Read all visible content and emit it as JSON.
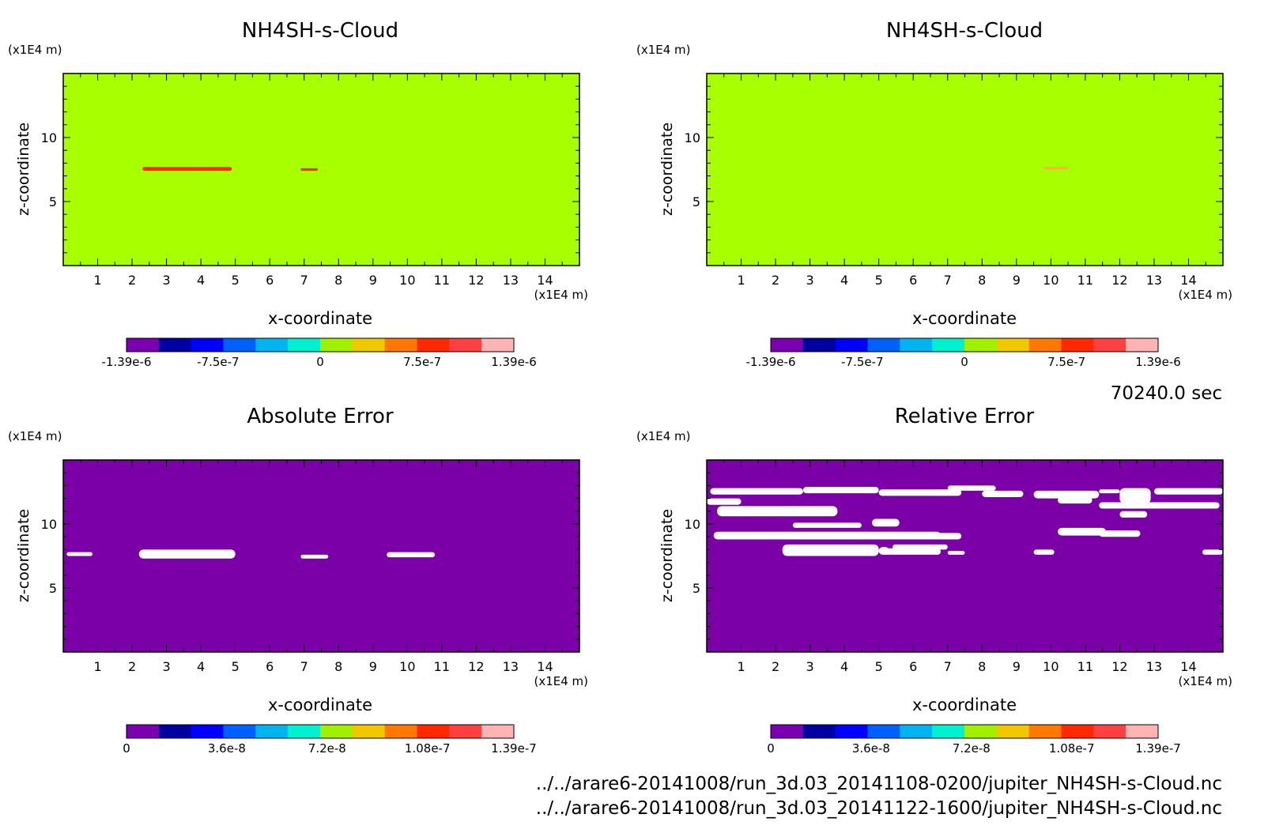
{
  "colorbar_colors": [
    "#7a00b0",
    "#0000a0",
    "#0000ff",
    "#0060ff",
    "#00b4f0",
    "#00f0d2",
    "#a0f000",
    "#f0c800",
    "#ff7800",
    "#ff2800",
    "#ff4040",
    "#ffb4b4"
  ],
  "background_color": "#a8ff00",
  "error_background_color": "#7b00a8",
  "timestamp": "70240.0 sec",
  "files": [
    "../../arare6-20141008/run_3d.03_20141108-0200/jupiter_NH4SH-s-Cloud.nc",
    "../../arare6-20141008/run_3d.03_20141122-1600/jupiter_NH4SH-s-Cloud.nc"
  ],
  "chart_data": [
    {
      "type": "heatmap",
      "title": "NH4SH-s-Cloud",
      "xlabel": "x-coordinate",
      "ylabel": "z-coordinate",
      "x_unit": "(x1E4 m)",
      "y_unit": "(x1E4 m)",
      "xlim": [
        0,
        15
      ],
      "ylim": [
        0,
        15
      ],
      "xticks": [
        1,
        2,
        3,
        4,
        5,
        6,
        7,
        8,
        9,
        10,
        11,
        12,
        13,
        14
      ],
      "yticks": [
        5,
        10
      ],
      "colorbar_ticks": [
        "-1.39e-6",
        "-7.5e-7",
        "0",
        "7.5e-7",
        "1.39e-6"
      ],
      "colorbar_range": [
        -1.39e-06,
        1.39e-06
      ],
      "background_value": 0,
      "features": [
        {
          "x": [
            2.3,
            4.9
          ],
          "z": [
            7.4,
            7.7
          ],
          "color": "#ff2800"
        },
        {
          "x": [
            6.9,
            7.4
          ],
          "z": [
            7.4,
            7.6
          ],
          "color": "#ff2800"
        }
      ]
    },
    {
      "type": "heatmap",
      "title": "NH4SH-s-Cloud",
      "xlabel": "x-coordinate",
      "ylabel": "z-coordinate",
      "x_unit": "(x1E4 m)",
      "y_unit": "(x1E4 m)",
      "xlim": [
        0,
        15
      ],
      "ylim": [
        0,
        15
      ],
      "xticks": [
        1,
        2,
        3,
        4,
        5,
        6,
        7,
        8,
        9,
        10,
        11,
        12,
        13,
        14
      ],
      "yticks": [
        5,
        10
      ],
      "colorbar_ticks": [
        "-1.39e-6",
        "-7.5e-7",
        "0",
        "7.5e-7",
        "1.39e-6"
      ],
      "colorbar_range": [
        -1.39e-06,
        1.39e-06
      ],
      "background_value": 0,
      "features": [
        {
          "x": [
            9.8,
            10.5
          ],
          "z": [
            7.5,
            7.7
          ],
          "color": "#ffb040"
        }
      ]
    },
    {
      "type": "heatmap",
      "title": "Absolute Error",
      "xlabel": "x-coordinate",
      "ylabel": "z-coordinate",
      "x_unit": "(x1E4 m)",
      "y_unit": "(x1E4 m)",
      "xlim": [
        0,
        15
      ],
      "ylim": [
        0,
        15
      ],
      "xticks": [
        1,
        2,
        3,
        4,
        5,
        6,
        7,
        8,
        9,
        10,
        11,
        12,
        13,
        14
      ],
      "yticks": [
        5,
        10
      ],
      "colorbar_ticks": [
        "0",
        "3.6e-8",
        "7.2e-8",
        "1.08e-7",
        "1.39e-7"
      ],
      "colorbar_range": [
        0,
        1.39e-07
      ],
      "background_value": 0,
      "features": [
        {
          "x": [
            0.1,
            0.85
          ],
          "z": [
            7.5,
            7.8
          ],
          "color": "#ffffff"
        },
        {
          "x": [
            2.2,
            5.0
          ],
          "z": [
            7.3,
            8.0
          ],
          "color": "#ffffff"
        },
        {
          "x": [
            6.9,
            7.7
          ],
          "z": [
            7.3,
            7.6
          ],
          "color": "#ffffff"
        },
        {
          "x": [
            9.4,
            10.8
          ],
          "z": [
            7.4,
            7.8
          ],
          "color": "#ffffff"
        }
      ]
    },
    {
      "type": "heatmap",
      "title": "Relative Error",
      "xlabel": "x-coordinate",
      "ylabel": "z-coordinate",
      "x_unit": "(x1E4 m)",
      "y_unit": "(x1E4 m)",
      "xlim": [
        0,
        15
      ],
      "ylim": [
        0,
        15
      ],
      "xticks": [
        1,
        2,
        3,
        4,
        5,
        6,
        7,
        8,
        9,
        10,
        11,
        12,
        13,
        14
      ],
      "yticks": [
        5,
        10
      ],
      "colorbar_ticks": [
        "0",
        "3.6e-8",
        "7.2e-8",
        "1.08e-7",
        "1.39e-7"
      ],
      "colorbar_range": [
        0,
        1.39e-07
      ],
      "background_value": 0,
      "features": [
        {
          "x": [
            0.1,
            2.8
          ],
          "z": [
            12.3,
            12.8
          ],
          "color": "#ffffff"
        },
        {
          "x": [
            2.8,
            5.0
          ],
          "z": [
            12.4,
            12.9
          ],
          "color": "#ffffff"
        },
        {
          "x": [
            5.0,
            7.4
          ],
          "z": [
            12.2,
            12.7
          ],
          "color": "#ffffff"
        },
        {
          "x": [
            0.0,
            1.0
          ],
          "z": [
            11.5,
            12.0
          ],
          "color": "#ffffff"
        },
        {
          "x": [
            0.3,
            3.8
          ],
          "z": [
            10.6,
            11.4
          ],
          "color": "#ffffff"
        },
        {
          "x": [
            2.5,
            4.5
          ],
          "z": [
            9.7,
            10.1
          ],
          "color": "#ffffff"
        },
        {
          "x": [
            4.8,
            5.6
          ],
          "z": [
            9.8,
            10.4
          ],
          "color": "#ffffff"
        },
        {
          "x": [
            0.2,
            6.8
          ],
          "z": [
            8.8,
            9.4
          ],
          "color": "#ffffff"
        },
        {
          "x": [
            2.2,
            5.0
          ],
          "z": [
            7.5,
            8.4
          ],
          "color": "#ffffff"
        },
        {
          "x": [
            5.0,
            5.3
          ],
          "z": [
            7.6,
            8.2
          ],
          "color": "#ffffff"
        },
        {
          "x": [
            7.0,
            7.5
          ],
          "z": [
            7.6,
            7.9
          ],
          "color": "#ffffff"
        },
        {
          "x": [
            5.1,
            6.8
          ],
          "z": [
            7.6,
            8.1
          ],
          "color": "#ffffff"
        },
        {
          "x": [
            5.4,
            7.0
          ],
          "z": [
            8.0,
            8.4
          ],
          "color": "#ffffff"
        },
        {
          "x": [
            6.3,
            7.4
          ],
          "z": [
            8.8,
            9.3
          ],
          "color": "#ffffff"
        },
        {
          "x": [
            7.0,
            8.4
          ],
          "z": [
            12.6,
            13.0
          ],
          "color": "#ffffff"
        },
        {
          "x": [
            8.0,
            9.2
          ],
          "z": [
            12.1,
            12.6
          ],
          "color": "#ffffff"
        },
        {
          "x": [
            9.5,
            11.4
          ],
          "z": [
            12.0,
            12.6
          ],
          "color": "#ffffff"
        },
        {
          "x": [
            11.4,
            12.0
          ],
          "z": [
            12.4,
            12.7
          ],
          "color": "#ffffff"
        },
        {
          "x": [
            12.0,
            12.9
          ],
          "z": [
            11.6,
            12.8
          ],
          "color": "#ffffff"
        },
        {
          "x": [
            13.0,
            15.0
          ],
          "z": [
            12.3,
            12.8
          ],
          "color": "#ffffff"
        },
        {
          "x": [
            10.2,
            11.2
          ],
          "z": [
            11.6,
            12.1
          ],
          "color": "#ffffff"
        },
        {
          "x": [
            12.0,
            12.8
          ],
          "z": [
            10.5,
            11.0
          ],
          "color": "#ffffff"
        },
        {
          "x": [
            11.4,
            14.9
          ],
          "z": [
            11.2,
            11.7
          ],
          "color": "#ffffff"
        },
        {
          "x": [
            10.2,
            11.6
          ],
          "z": [
            9.1,
            9.7
          ],
          "color": "#ffffff"
        },
        {
          "x": [
            11.4,
            12.6
          ],
          "z": [
            9.0,
            9.5
          ],
          "color": "#ffffff"
        },
        {
          "x": [
            9.5,
            10.1
          ],
          "z": [
            7.6,
            8.0
          ],
          "color": "#ffffff"
        },
        {
          "x": [
            14.4,
            15.0
          ],
          "z": [
            7.6,
            8.0
          ],
          "color": "#ffffff"
        }
      ]
    }
  ]
}
